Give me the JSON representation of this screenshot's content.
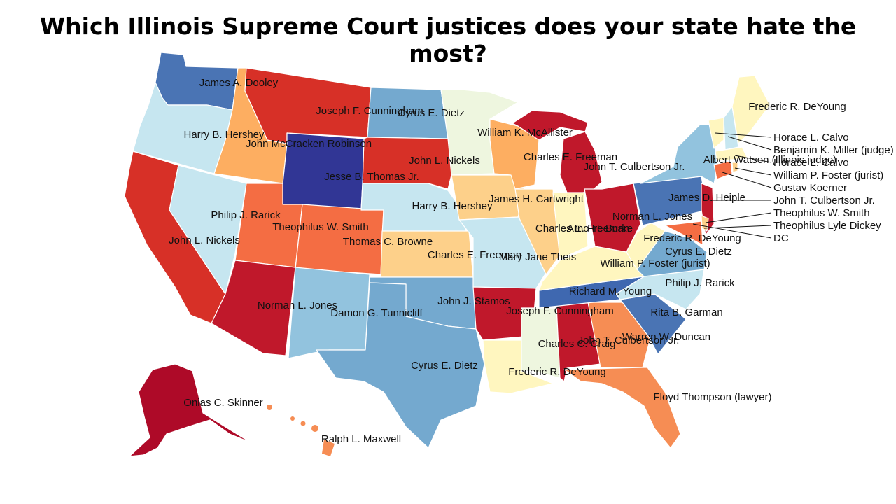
{
  "title": "Which Illinois Supreme Court justices does your state hate the most?",
  "colors": {
    "darkred": "#ae0a28",
    "red": "#d73027",
    "orange": "#f46d43",
    "lightorange": "#fdae61",
    "paleorange": "#fdd08a",
    "paleyellow": "#fff6bf",
    "palegreen": "#eef6df",
    "lightblue": "#c6e6f0",
    "blue": "#92c3de",
    "midblue": "#74a9cf",
    "steelblue": "#4a74b4",
    "navy": "#313695",
    "border": "#ffffff"
  },
  "states": [
    {
      "name": "Washington",
      "justice": "James A. Dooley"
    },
    {
      "name": "Oregon",
      "justice": "Harry B. Hershey"
    },
    {
      "name": "Idaho",
      "justice": "John McCracken Robinson"
    },
    {
      "name": "Montana",
      "justice": "Joseph F. Cunningham"
    },
    {
      "name": "North Dakota",
      "justice": "Cyrus E. Dietz"
    },
    {
      "name": "Minnesota",
      "justice": "William K. McAllister"
    },
    {
      "name": "South Dakota",
      "justice": "John L. Nickels"
    },
    {
      "name": "Wyoming",
      "justice": "Jesse B. Thomas Jr."
    },
    {
      "name": "California",
      "justice": "John L. Nickels"
    },
    {
      "name": "Nevada",
      "justice": "Philip J. Rarick"
    },
    {
      "name": "Utah",
      "justice": "Theophilus W. Smith"
    },
    {
      "name": "Colorado",
      "justice": "Thomas C. Browne"
    },
    {
      "name": "Nebraska",
      "justice": "Harry B. Hershey"
    },
    {
      "name": "Iowa",
      "justice": "James H. Cartwright"
    },
    {
      "name": "Wisconsin",
      "justice": "Charles E. Freeman"
    },
    {
      "name": "Michigan",
      "justice": "John T. Culbertson Jr."
    },
    {
      "name": "Kansas",
      "justice": "Charles E. Freeman"
    },
    {
      "name": "Missouri",
      "justice": "Mary Jane Theis"
    },
    {
      "name": "Illinois",
      "justice": "Charles E. Freeman"
    },
    {
      "name": "Indiana",
      "justice": "Arno H. Burke"
    },
    {
      "name": "Ohio",
      "justice": "Norman L. Jones"
    },
    {
      "name": "Arizona",
      "justice": "Norman L. Jones"
    },
    {
      "name": "New Mexico",
      "justice": "Damon G. Tunnicliff"
    },
    {
      "name": "Oklahoma",
      "justice": "John J. Stamos"
    },
    {
      "name": "Texas",
      "justice": "Cyrus E. Dietz"
    },
    {
      "name": "Arkansas",
      "justice": "Joseph F. Cunningham"
    },
    {
      "name": "Louisiana",
      "justice": "Frederic R. DeYoung"
    },
    {
      "name": "Mississippi",
      "justice": "Charles C. Craig"
    },
    {
      "name": "Alabama",
      "justice": "John T. Culbertson Jr."
    },
    {
      "name": "Georgia",
      "justice": "Warren W. Duncan"
    },
    {
      "name": "Florida",
      "justice": "Floyd Thompson (lawyer)"
    },
    {
      "name": "Tennessee",
      "justice": "Richard M. Young"
    },
    {
      "name": "Kentucky",
      "justice": "William P. Foster (jurist)"
    },
    {
      "name": "South Carolina",
      "justice": "Rita B. Garman"
    },
    {
      "name": "North Carolina",
      "justice": "Philip J. Rarick"
    },
    {
      "name": "Virginia",
      "justice": "Cyrus E. Dietz"
    },
    {
      "name": "West Virginia",
      "justice": "Frederic R. DeYoung"
    },
    {
      "name": "Pennsylvania",
      "justice": "James D. Heiple"
    },
    {
      "name": "New York",
      "justice": "Albert Watson (Illinois judge)"
    },
    {
      "name": "Maine",
      "justice": "Frederic R. DeYoung"
    },
    {
      "name": "Alaska",
      "justice": "Onias C. Skinner"
    },
    {
      "name": "Hawaii",
      "justice": "Ralph L. Maxwell"
    }
  ],
  "callouts": [
    "Horace L. Calvo",
    "Benjamin K. Miller (judge)",
    "Horace L. Calvo",
    "William P. Foster (jurist)",
    "Gustav Koerner",
    "John T. Culbertson Jr.",
    "Theophilus W. Smith",
    "Theophilus Lyle Dickey",
    "DC"
  ]
}
